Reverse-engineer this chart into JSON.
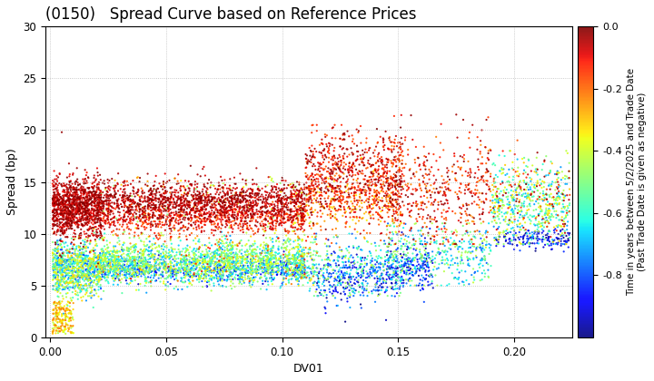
{
  "title": "(0150)   Spread Curve based on Reference Prices",
  "xlabel": "DV01",
  "ylabel": "Spread (bp)",
  "xlim": [
    -0.002,
    0.225
  ],
  "ylim": [
    0,
    30
  ],
  "xticks": [
    0.0,
    0.05,
    0.1,
    0.15,
    0.2
  ],
  "yticks": [
    0,
    5,
    10,
    15,
    20,
    25,
    30
  ],
  "cbar_label_line1": "Time in years between 5/2/2025 and Trade Date",
  "cbar_label_line2": "(Past Trade Date is given as negative)",
  "cbar_ticks": [
    0.0,
    -0.2,
    -0.4,
    -0.6,
    -0.8
  ],
  "color_min": -1.0,
  "color_max": 0.0,
  "background_color": "#ffffff",
  "grid_color": "#bbbbbb",
  "marker_size": 2.5,
  "title_fontsize": 12,
  "label_fontsize": 9
}
